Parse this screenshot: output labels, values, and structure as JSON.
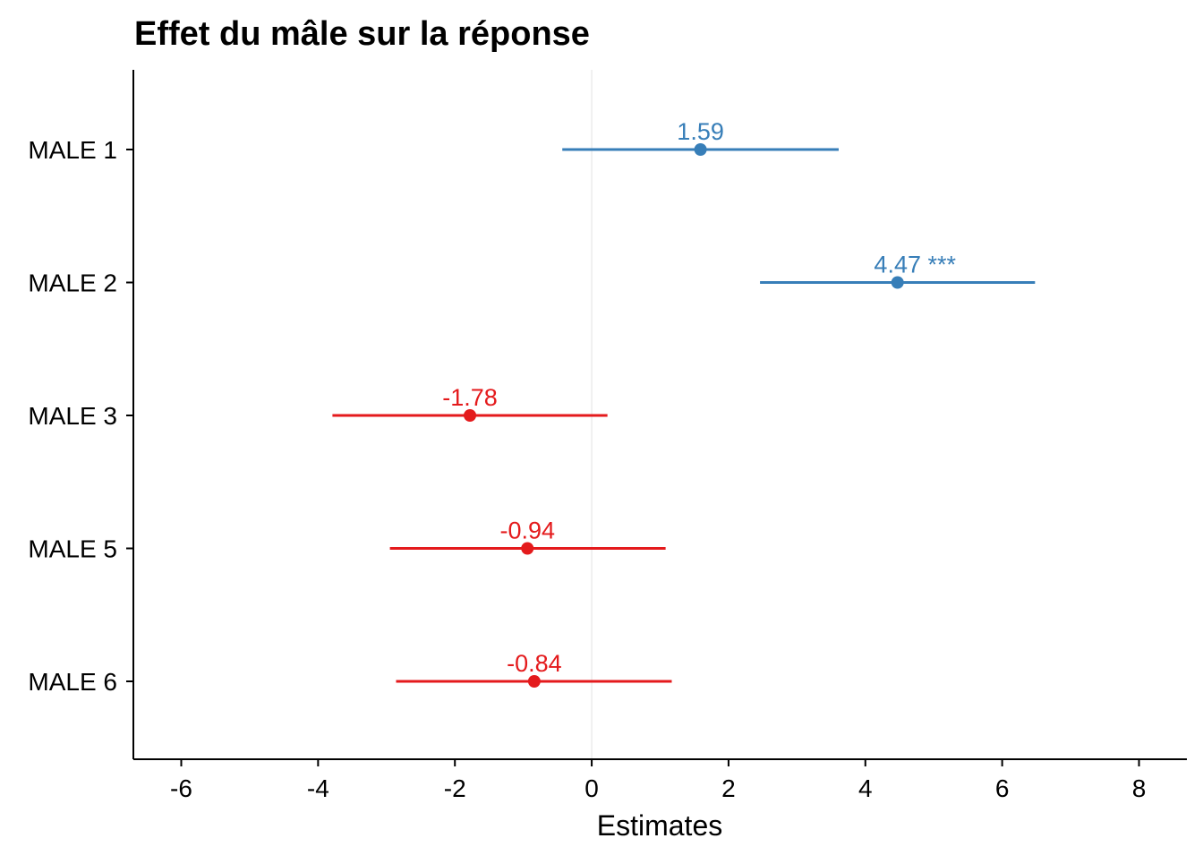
{
  "chart_data": {
    "type": "forest",
    "title": "Effet du mâle sur la réponse",
    "xlabel": "Estimates",
    "ylabel": "",
    "xlim": [
      -6.7,
      8.7
    ],
    "x_ticks": [
      -6,
      -4,
      -2,
      0,
      2,
      4,
      6,
      8
    ],
    "x_tick_labels": [
      "-6",
      "-4",
      "-2",
      "0",
      "2",
      "4",
      "6",
      "8"
    ],
    "reference_line": 0,
    "colors": {
      "positive": "#377EB8",
      "negative": "#E41A1C",
      "reference": "#EBEBEB",
      "axis": "#000000"
    },
    "terms": [
      {
        "label": "MALE 1",
        "estimate": 1.59,
        "ci_low": -0.43,
        "ci_high": 3.61,
        "significance": "",
        "data_label": "1.59",
        "direction": "positive"
      },
      {
        "label": "MALE 2",
        "estimate": 4.47,
        "ci_low": 2.46,
        "ci_high": 6.48,
        "significance": "***",
        "data_label": "4.47 ***",
        "direction": "positive"
      },
      {
        "label": "MALE 3",
        "estimate": -1.78,
        "ci_low": -3.79,
        "ci_high": 0.23,
        "significance": "",
        "data_label": "-1.78",
        "direction": "negative"
      },
      {
        "label": "MALE 5",
        "estimate": -0.94,
        "ci_low": -2.95,
        "ci_high": 1.08,
        "significance": "",
        "data_label": "-0.94",
        "direction": "negative"
      },
      {
        "label": "MALE 6",
        "estimate": -0.84,
        "ci_low": -2.86,
        "ci_high": 1.17,
        "significance": "",
        "data_label": "-0.84",
        "direction": "negative"
      }
    ]
  }
}
